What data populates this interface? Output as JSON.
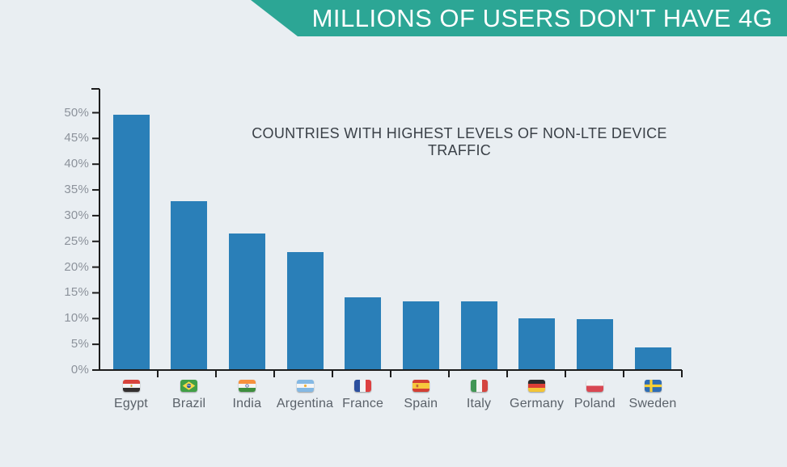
{
  "banner": {
    "title": "MILLIONS OF USERS DON'T HAVE 4G"
  },
  "chart_data": {
    "type": "bar",
    "title": "COUNTRIES WITH HIGHEST LEVELS OF NON-LTE DEVICE TRAFFIC",
    "categories": [
      "Egypt",
      "Brazil",
      "India",
      "Argentina",
      "France",
      "Spain",
      "Italy",
      "Germany",
      "Poland",
      "Sweden"
    ],
    "values": [
      49.5,
      32.7,
      26.4,
      22.8,
      13.9,
      13.2,
      13.2,
      9.9,
      9.7,
      4.3
    ],
    "unit": "%",
    "xlabel": "",
    "ylabel": "",
    "ylim": [
      0,
      50
    ],
    "y_tick_step": 5,
    "y_ticks": [
      "0%",
      "5%",
      "10%",
      "15%",
      "20%",
      "25%",
      "30%",
      "35%",
      "40%",
      "45%",
      "50%"
    ],
    "grid": false,
    "legend": "none",
    "flags": [
      "flag-egypt-icon",
      "flag-brazil-icon",
      "flag-india-icon",
      "flag-argentina-icon",
      "flag-france-icon",
      "flag-spain-icon",
      "flag-italy-icon",
      "flag-germany-icon",
      "flag-poland-icon",
      "flag-sweden-icon"
    ]
  },
  "colors": {
    "background": "#e9eef2",
    "banner": "#2ca695",
    "banner_text": "#ffffff",
    "bar": "#2a7fb8",
    "axis": "#1c1c1c",
    "title_text": "#3a4047",
    "y_label_text": "#8c929b",
    "country_label_text": "#5a6169"
  }
}
